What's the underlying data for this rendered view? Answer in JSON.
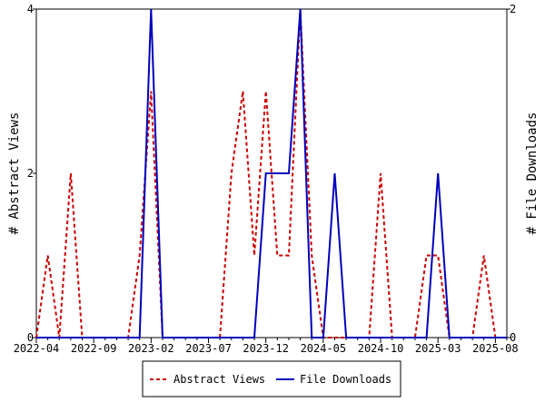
{
  "chart_data": {
    "type": "line",
    "title": "",
    "xlabel": "",
    "ylabel_left": "# Abstract Views",
    "ylabel_right": "# File Downloads",
    "ylim_left": [
      0,
      4
    ],
    "ylim_right": [
      0,
      2
    ],
    "yticks_left": [
      "0",
      "2",
      "4"
    ],
    "yticks_right": [
      "0",
      "2"
    ],
    "xtick_labels": [
      "2022-04",
      "2022-09",
      "2023-02",
      "2023-07",
      "2023-12",
      "2024-05",
      "2024-10",
      "2025-03",
      "2025-08"
    ],
    "months_count": 42,
    "legend_position": "bottom-center",
    "series": [
      {
        "name": "Abstract Views",
        "axis": "left",
        "color": "#cc0000",
        "style": "dashed",
        "values": [
          0,
          1,
          0,
          2,
          0,
          0,
          0,
          0,
          0,
          1,
          3,
          0,
          0,
          0,
          0,
          0,
          0,
          2,
          3,
          1,
          3,
          1,
          1,
          4,
          1,
          0,
          0,
          0,
          0,
          0,
          2,
          0,
          0,
          0,
          1,
          1,
          0,
          0,
          0,
          1,
          0,
          0
        ]
      },
      {
        "name": "File Downloads",
        "axis": "right",
        "color": "#0000bb",
        "style": "solid",
        "values": [
          0,
          0,
          0,
          0,
          0,
          0,
          0,
          0,
          0,
          0,
          2,
          0,
          0,
          0,
          0,
          0,
          0,
          0,
          0,
          0,
          1,
          1,
          1,
          2,
          0,
          0,
          1,
          0,
          0,
          0,
          0,
          0,
          0,
          0,
          0,
          1,
          0,
          0,
          0,
          0,
          0,
          0
        ]
      }
    ]
  }
}
